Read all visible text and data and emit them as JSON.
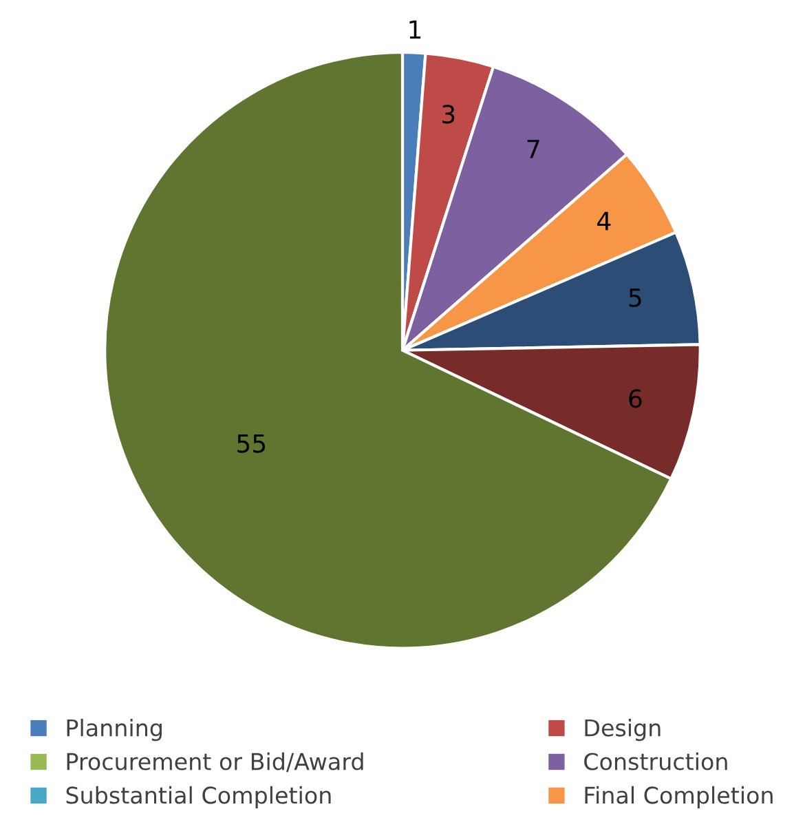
{
  "chart_data": {
    "type": "pie",
    "categories": [
      "Planning",
      "Design",
      "Procurement or Bid/Award",
      "Construction",
      "Substantial Completion",
      "Final Completion",
      null,
      null,
      null
    ],
    "values": [
      1,
      3,
      0,
      7,
      0,
      4,
      5,
      6,
      55
    ],
    "value_labels": [
      "1",
      "3",
      null,
      "7",
      null,
      "4",
      "5",
      "6",
      "55"
    ],
    "colors": [
      "#4a7ebb",
      "#be4b48",
      "#98b954",
      "#7d60a0",
      "#46aac5",
      "#f79646",
      "#2c4d75",
      "#772c2a",
      "#5f7530"
    ],
    "legend": "bottom"
  }
}
